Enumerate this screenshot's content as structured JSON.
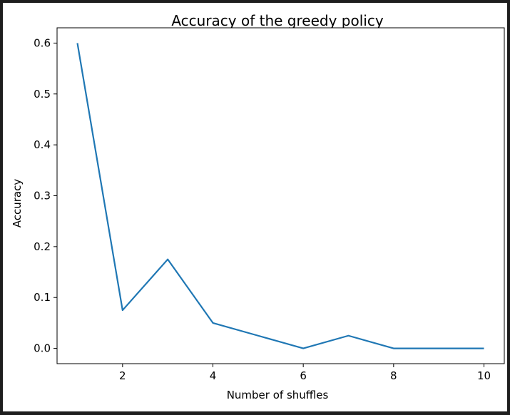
{
  "chart_data": {
    "type": "line",
    "title": "Accuracy of the greedy policy",
    "xlabel": "Number of shuffles",
    "ylabel": "Accuracy",
    "xlim": [
      0.55,
      10.45
    ],
    "ylim": [
      -0.03,
      0.63
    ],
    "xticks": [
      2,
      4,
      6,
      8,
      10
    ],
    "yticks": [
      0.0,
      0.1,
      0.2,
      0.3,
      0.4,
      0.5,
      0.6
    ],
    "ytick_labels": [
      "0.0",
      "0.1",
      "0.2",
      "0.3",
      "0.4",
      "0.5",
      "0.6"
    ],
    "grid": false,
    "series": [
      {
        "color": "#1f77b4",
        "x": [
          1,
          2,
          3,
          4,
          5,
          6,
          7,
          8,
          9,
          10
        ],
        "y": [
          0.6,
          0.075,
          0.175,
          0.05,
          0.025,
          0.0,
          0.025,
          0.0,
          0.0,
          0.0
        ]
      }
    ]
  }
}
